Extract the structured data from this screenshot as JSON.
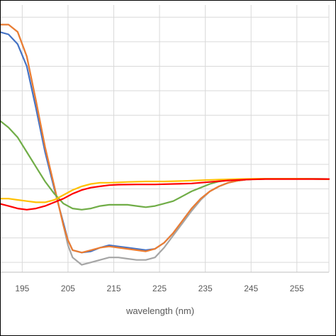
{
  "chart_data": {
    "type": "line",
    "title": "",
    "xlabel": "wavelength (nm)",
    "ylabel": "",
    "xlim": [
      190.3,
      262
    ],
    "ylim": [
      -32,
      77
    ],
    "x_ticks": [
      195,
      205,
      215,
      225,
      235,
      245,
      255
    ],
    "y_gridlines": [
      -28,
      -18,
      -8,
      2,
      12,
      22,
      32,
      42,
      52,
      62,
      72
    ],
    "grid": true,
    "legend": "none",
    "series": [
      {
        "color": "#4472c4",
        "points": [
          [
            190,
            66
          ],
          [
            192,
            65
          ],
          [
            194,
            61
          ],
          [
            196,
            52
          ],
          [
            198,
            35
          ],
          [
            200,
            17
          ],
          [
            202,
            2
          ],
          [
            203,
            -5
          ],
          [
            204,
            -12
          ],
          [
            205,
            -19
          ],
          [
            206,
            -23
          ],
          [
            208,
            -24
          ],
          [
            210,
            -23.5
          ],
          [
            212,
            -22
          ],
          [
            214,
            -21
          ],
          [
            216,
            -21.5
          ],
          [
            218,
            -22
          ],
          [
            220,
            -22.5
          ],
          [
            222,
            -23
          ],
          [
            224,
            -22.5
          ],
          [
            226,
            -20
          ],
          [
            228,
            -16
          ],
          [
            230,
            -11
          ],
          [
            232,
            -6
          ],
          [
            234,
            -2
          ],
          [
            236,
            1
          ],
          [
            238,
            3
          ],
          [
            240,
            4.5
          ],
          [
            242,
            5.3
          ],
          [
            244,
            5.8
          ],
          [
            246,
            6
          ],
          [
            250,
            6.1
          ],
          [
            255,
            6.1
          ],
          [
            262,
            6
          ]
        ]
      },
      {
        "color": "#a5a5a5",
        "points": [
          [
            190,
            69
          ],
          [
            192,
            69
          ],
          [
            194,
            66
          ],
          [
            196,
            56
          ],
          [
            198,
            38
          ],
          [
            200,
            19
          ],
          [
            202,
            3
          ],
          [
            203,
            -5
          ],
          [
            204,
            -13
          ],
          [
            205,
            -21
          ],
          [
            206,
            -26
          ],
          [
            208,
            -29
          ],
          [
            210,
            -28
          ],
          [
            212,
            -27
          ],
          [
            214,
            -26
          ],
          [
            216,
            -26
          ],
          [
            218,
            -26.5
          ],
          [
            220,
            -27
          ],
          [
            222,
            -27
          ],
          [
            224,
            -26
          ],
          [
            226,
            -22
          ],
          [
            228,
            -17
          ],
          [
            230,
            -12
          ],
          [
            232,
            -7
          ],
          [
            234,
            -2.5
          ],
          [
            236,
            1
          ],
          [
            238,
            3
          ],
          [
            240,
            4.5
          ],
          [
            242,
            5.3
          ],
          [
            244,
            5.8
          ],
          [
            246,
            6
          ],
          [
            250,
            6.1
          ],
          [
            255,
            6.1
          ],
          [
            262,
            6
          ]
        ]
      },
      {
        "color": "#ed7d31",
        "points": [
          [
            190,
            69
          ],
          [
            192,
            69
          ],
          [
            194,
            66
          ],
          [
            196,
            56
          ],
          [
            198,
            38
          ],
          [
            200,
            19
          ],
          [
            202,
            3
          ],
          [
            203,
            -5
          ],
          [
            204,
            -13
          ],
          [
            205,
            -19
          ],
          [
            206,
            -23
          ],
          [
            208,
            -24
          ],
          [
            210,
            -23
          ],
          [
            212,
            -22
          ],
          [
            214,
            -21.5
          ],
          [
            216,
            -22
          ],
          [
            218,
            -22.5
          ],
          [
            220,
            -23
          ],
          [
            222,
            -23.5
          ],
          [
            224,
            -22.5
          ],
          [
            226,
            -20
          ],
          [
            228,
            -16
          ],
          [
            230,
            -11
          ],
          [
            232,
            -6
          ],
          [
            234,
            -2
          ],
          [
            236,
            1
          ],
          [
            238,
            3
          ],
          [
            240,
            4.5
          ],
          [
            242,
            5.3
          ],
          [
            244,
            5.8
          ],
          [
            246,
            6
          ],
          [
            250,
            6.1
          ],
          [
            255,
            6.1
          ],
          [
            262,
            6
          ]
        ]
      },
      {
        "color": "#70ad47",
        "points": [
          [
            190,
            30
          ],
          [
            192,
            27
          ],
          [
            194,
            23
          ],
          [
            196,
            17
          ],
          [
            198,
            11
          ],
          [
            200,
            5
          ],
          [
            202,
            0
          ],
          [
            204,
            -4
          ],
          [
            206,
            -6
          ],
          [
            208,
            -6.5
          ],
          [
            210,
            -6
          ],
          [
            212,
            -5
          ],
          [
            214,
            -4.5
          ],
          [
            216,
            -4.5
          ],
          [
            218,
            -4.5
          ],
          [
            220,
            -5
          ],
          [
            222,
            -5.5
          ],
          [
            224,
            -5
          ],
          [
            226,
            -4
          ],
          [
            228,
            -3
          ],
          [
            230,
            -1
          ],
          [
            232,
            1
          ],
          [
            234,
            2.5
          ],
          [
            236,
            4
          ],
          [
            238,
            5
          ],
          [
            240,
            5.5
          ],
          [
            242,
            5.8
          ],
          [
            244,
            6
          ],
          [
            250,
            6.1
          ],
          [
            255,
            6.1
          ],
          [
            262,
            6
          ]
        ]
      },
      {
        "color": "#ffc000",
        "points": [
          [
            190,
            -2
          ],
          [
            192,
            -2
          ],
          [
            194,
            -2.5
          ],
          [
            196,
            -3
          ],
          [
            198,
            -3.5
          ],
          [
            200,
            -3.5
          ],
          [
            202,
            -2.5
          ],
          [
            204,
            -0.5
          ],
          [
            206,
            1.5
          ],
          [
            208,
            3
          ],
          [
            210,
            4
          ],
          [
            212,
            4.5
          ],
          [
            214,
            4.5
          ],
          [
            218,
            4.8
          ],
          [
            222,
            5
          ],
          [
            226,
            5
          ],
          [
            230,
            5.2
          ],
          [
            234,
            5.5
          ],
          [
            238,
            5.8
          ],
          [
            242,
            6
          ],
          [
            246,
            6.1
          ],
          [
            250,
            6.1
          ],
          [
            255,
            6.1
          ],
          [
            262,
            6
          ]
        ]
      },
      {
        "color": "#ff0000",
        "points": [
          [
            190,
            -4
          ],
          [
            192,
            -5
          ],
          [
            194,
            -6
          ],
          [
            196,
            -6.5
          ],
          [
            198,
            -6
          ],
          [
            200,
            -5
          ],
          [
            202,
            -3.5
          ],
          [
            204,
            -2
          ],
          [
            206,
            0
          ],
          [
            208,
            1.5
          ],
          [
            210,
            2.5
          ],
          [
            212,
            3
          ],
          [
            214,
            3.5
          ],
          [
            216,
            3.7
          ],
          [
            220,
            3.8
          ],
          [
            224,
            3.8
          ],
          [
            228,
            4
          ],
          [
            232,
            4.2
          ],
          [
            236,
            4.8
          ],
          [
            240,
            5.4
          ],
          [
            244,
            5.8
          ],
          [
            248,
            6
          ],
          [
            252,
            6
          ],
          [
            256,
            6
          ],
          [
            262,
            6
          ]
        ]
      }
    ]
  }
}
